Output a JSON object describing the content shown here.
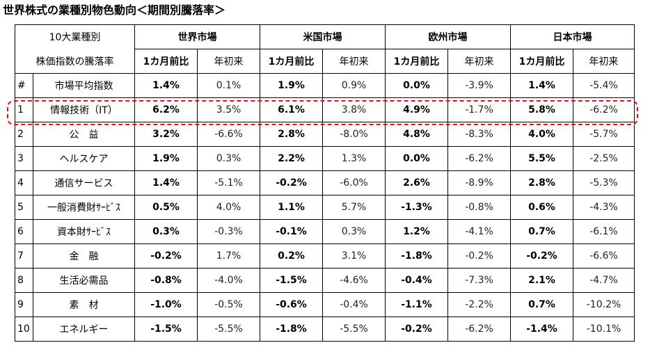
{
  "title": "世界株式の業種別物色動向＜期間別騰落率＞",
  "header": {
    "label_top": "10大業種別",
    "label_bottom": "株価指数の騰落率",
    "markets": [
      "世界市場",
      "米国市場",
      "欧州市場",
      "日本市場"
    ],
    "sub_month": "1カ月前比",
    "sub_ytd": "年初来"
  },
  "rows": [
    {
      "num": "#",
      "name": "市場平均指数",
      "v": [
        "1.4%",
        "0.1%",
        "1.9%",
        "0.9%",
        "0.0%",
        "-3.9%",
        "1.4%",
        "-5.4%"
      ]
    },
    {
      "num": "1",
      "name": "情報技術（IT）",
      "v": [
        "6.2%",
        "3.5%",
        "6.1%",
        "3.8%",
        "4.9%",
        "-1.7%",
        "5.8%",
        "-6.2%"
      ]
    },
    {
      "num": "2",
      "name": "公　益",
      "v": [
        "3.2%",
        "-6.6%",
        "2.8%",
        "-8.0%",
        "4.8%",
        "-8.3%",
        "4.0%",
        "-5.7%"
      ]
    },
    {
      "num": "3",
      "name": "ヘルスケア",
      "v": [
        "1.9%",
        "0.3%",
        "2.2%",
        "1.3%",
        "0.0%",
        "-6.2%",
        "5.5%",
        "-2.5%"
      ]
    },
    {
      "num": "4",
      "name": "通信サービス",
      "v": [
        "1.4%",
        "-5.1%",
        "-0.2%",
        "-6.0%",
        "2.6%",
        "-8.9%",
        "2.8%",
        "-5.3%"
      ]
    },
    {
      "num": "5",
      "name": "一般消費財ｻｰﾋﾞｽ",
      "v": [
        "0.5%",
        "4.0%",
        "1.1%",
        "5.7%",
        "-1.3%",
        "-0.8%",
        "0.6%",
        "-4.3%"
      ]
    },
    {
      "num": "6",
      "name": "資本財ｻｰﾋﾞｽ",
      "v": [
        "0.3%",
        "-0.3%",
        "-0.1%",
        "0.3%",
        "1.2%",
        "-4.1%",
        "0.7%",
        "-6.1%"
      ]
    },
    {
      "num": "7",
      "name": "金　融",
      "v": [
        "-0.2%",
        "1.7%",
        "0.2%",
        "3.1%",
        "-1.8%",
        "-0.2%",
        "-0.2%",
        "-6.6%"
      ]
    },
    {
      "num": "8",
      "name": "生活必需品",
      "v": [
        "-0.8%",
        "-4.0%",
        "-1.5%",
        "-4.6%",
        "-0.4%",
        "-7.3%",
        "2.1%",
        "-4.7%"
      ]
    },
    {
      "num": "9",
      "name": "素　材",
      "v": [
        "-1.0%",
        "-0.5%",
        "-0.6%",
        "-0.4%",
        "-1.1%",
        "-2.2%",
        "0.7%",
        "-10.2%"
      ]
    },
    {
      "num": "10",
      "name": "エネルギー",
      "v": [
        "-1.5%",
        "-5.5%",
        "-1.8%",
        "-5.5%",
        "-0.2%",
        "-6.2%",
        "-1.4%",
        "-10.1%"
      ]
    }
  ],
  "highlight_row": "1"
}
